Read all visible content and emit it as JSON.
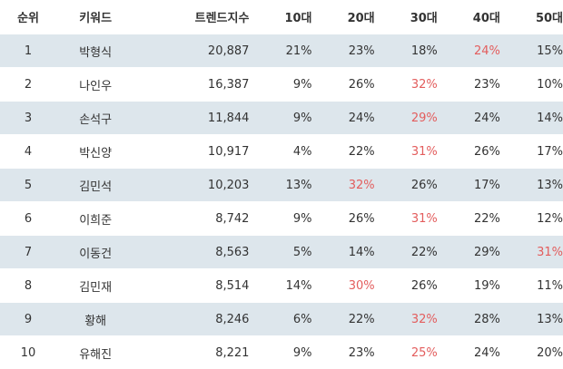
{
  "table": {
    "headers": [
      "순위",
      "키워드",
      "트렌드지수",
      "10대",
      "20대",
      "30대",
      "40대",
      "50대"
    ],
    "highlight_color": "#e35d5d",
    "shaded_row_color": "#dde6ec",
    "rows": [
      {
        "rank": "1",
        "keyword": "박형식",
        "index": "20,887",
        "ages": [
          "21%",
          "23%",
          "18%",
          "24%",
          "15%"
        ],
        "highlight": 3
      },
      {
        "rank": "2",
        "keyword": "나인우",
        "index": "16,387",
        "ages": [
          "9%",
          "26%",
          "32%",
          "23%",
          "10%"
        ],
        "highlight": 2
      },
      {
        "rank": "3",
        "keyword": "손석구",
        "index": "11,844",
        "ages": [
          "9%",
          "24%",
          "29%",
          "24%",
          "14%"
        ],
        "highlight": 2
      },
      {
        "rank": "4",
        "keyword": "박신양",
        "index": "10,917",
        "ages": [
          "4%",
          "22%",
          "31%",
          "26%",
          "17%"
        ],
        "highlight": 2
      },
      {
        "rank": "5",
        "keyword": "김민석",
        "index": "10,203",
        "ages": [
          "13%",
          "32%",
          "26%",
          "17%",
          "13%"
        ],
        "highlight": 1
      },
      {
        "rank": "6",
        "keyword": "이희준",
        "index": "8,742",
        "ages": [
          "9%",
          "26%",
          "31%",
          "22%",
          "12%"
        ],
        "highlight": 2
      },
      {
        "rank": "7",
        "keyword": "이동건",
        "index": "8,563",
        "ages": [
          "5%",
          "14%",
          "22%",
          "29%",
          "31%"
        ],
        "highlight": 4
      },
      {
        "rank": "8",
        "keyword": "김민재",
        "index": "8,514",
        "ages": [
          "14%",
          "30%",
          "26%",
          "19%",
          "11%"
        ],
        "highlight": 1
      },
      {
        "rank": "9",
        "keyword": "황해",
        "index": "8,246",
        "ages": [
          "6%",
          "22%",
          "32%",
          "28%",
          "13%"
        ],
        "highlight": 2
      },
      {
        "rank": "10",
        "keyword": "유해진",
        "index": "8,221",
        "ages": [
          "9%",
          "23%",
          "25%",
          "24%",
          "20%"
        ],
        "highlight": 2
      }
    ]
  }
}
